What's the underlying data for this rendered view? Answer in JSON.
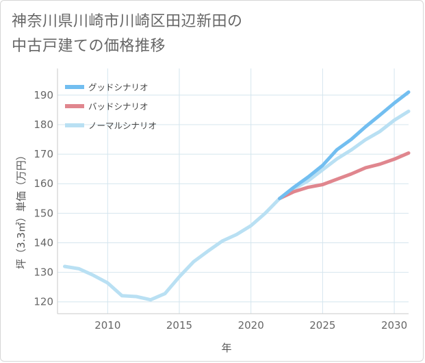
{
  "page": {
    "title_line1": "神奈川県川崎市川崎区田辺新田の",
    "title_line2": "中古戸建ての価格推移"
  },
  "chart_data": {
    "type": "line",
    "title": "神奈川県川崎市川崎区田辺新田の中古戸建ての価格推移",
    "xlabel": "年",
    "ylabel": "坪（3.3㎡）単価（万円）",
    "xlim": [
      2006.5,
      2031
    ],
    "ylim": [
      116,
      199
    ],
    "x_ticks": [
      2010,
      2015,
      2020,
      2025,
      2030
    ],
    "y_ticks": [
      120,
      130,
      140,
      150,
      160,
      170,
      180,
      190
    ],
    "grid": true,
    "legend_position": "top-left",
    "series": [
      {
        "name": "グッドシナリオ",
        "color": "#72bef0",
        "points": [
          [
            2022,
            155.0
          ],
          [
            2023,
            158.8
          ],
          [
            2024,
            162.3
          ],
          [
            2025,
            166.2
          ],
          [
            2026,
            171.5
          ],
          [
            2027,
            175.0
          ],
          [
            2028,
            179.3
          ],
          [
            2029,
            183.2
          ],
          [
            2030,
            187.3
          ],
          [
            2031,
            191.0
          ]
        ]
      },
      {
        "name": "バッドシナリオ",
        "color": "#e0868e",
        "points": [
          [
            2022,
            155.0
          ],
          [
            2023,
            157.3
          ],
          [
            2024,
            158.8
          ],
          [
            2025,
            159.7
          ],
          [
            2026,
            161.5
          ],
          [
            2027,
            163.3
          ],
          [
            2028,
            165.4
          ],
          [
            2029,
            166.6
          ],
          [
            2030,
            168.3
          ],
          [
            2031,
            170.4
          ]
        ]
      },
      {
        "name": "ノーマルシナリオ",
        "color": "#b9e0f3",
        "points": [
          [
            2007,
            132.0
          ],
          [
            2008,
            131.2
          ],
          [
            2009,
            129.0
          ],
          [
            2010,
            126.4
          ],
          [
            2011,
            122.1
          ],
          [
            2012,
            121.8
          ],
          [
            2013,
            120.7
          ],
          [
            2014,
            122.8
          ],
          [
            2015,
            128.5
          ],
          [
            2016,
            133.6
          ],
          [
            2017,
            137.2
          ],
          [
            2018,
            140.6
          ],
          [
            2019,
            142.8
          ],
          [
            2020,
            145.8
          ],
          [
            2021,
            150.0
          ],
          [
            2022,
            155.0
          ],
          [
            2023,
            158.3
          ],
          [
            2024,
            161.0
          ],
          [
            2025,
            164.7
          ],
          [
            2026,
            168.4
          ],
          [
            2027,
            171.4
          ],
          [
            2028,
            174.9
          ],
          [
            2029,
            177.7
          ],
          [
            2030,
            181.5
          ],
          [
            2031,
            184.5
          ]
        ]
      }
    ]
  }
}
